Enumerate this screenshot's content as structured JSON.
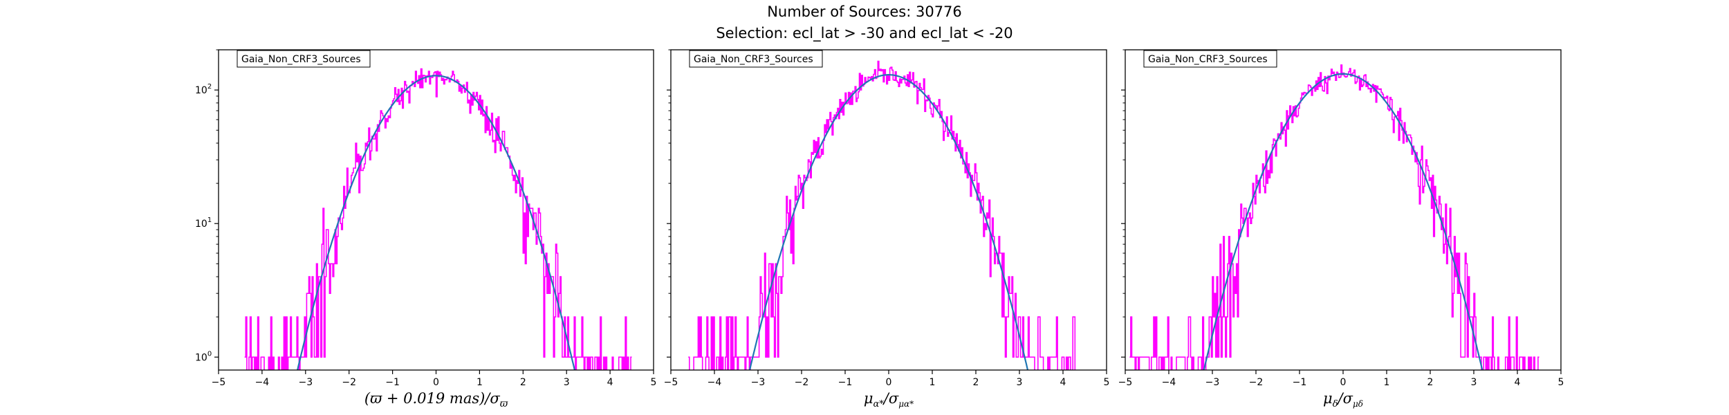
{
  "figure": {
    "title_line1": "Number of Sources: 30776",
    "title_line2": "Selection: ecl_lat > -30 and ecl_lat < -20"
  },
  "colors": {
    "histogram": "#ff00ff",
    "fit": "#1f77b4",
    "frame": "#000000",
    "background": "#ffffff"
  },
  "chart_data": [
    {
      "type": "histogram",
      "legend": "Gaia_Non_CRF3_Sources",
      "xlabel": "(ϖ + 0.019 mas)/σ_ϖ",
      "xlabel_main": "(ϖ + 0.019 mas)/σ",
      "xlabel_sub": "ϖ",
      "xlim": [
        -5,
        5
      ],
      "ylim": [
        0.8,
        200
      ],
      "yscale": "log",
      "xticks": [
        "−5",
        "−4",
        "−3",
        "−2",
        "−1",
        "0",
        "1",
        "2",
        "3",
        "4",
        "5"
      ],
      "yticks": [
        {
          "base": "10",
          "exp": "0",
          "value": 1
        },
        {
          "base": "10",
          "exp": "1",
          "value": 10
        },
        {
          "base": "10",
          "exp": "2",
          "value": 100
        }
      ],
      "histogram": {
        "range": [
          -4.4,
          4.5
        ],
        "peak": 128,
        "center": 0.0,
        "sigma": 1.0,
        "seed": 11
      },
      "fit": {
        "amplitude": 128,
        "mean": 0.0,
        "sigma": 1.0,
        "range": [
          -3.8,
          3.8
        ]
      }
    },
    {
      "type": "histogram",
      "legend": "Gaia_Non_CRF3_Sources",
      "xlabel": "μ_α*/σ_μα*",
      "xlabel_main": "μ",
      "xlabel_sub": "α*",
      "xlabel_mid": "/σ",
      "xlabel_sub2": "μα*",
      "xlim": [
        -5,
        5
      ],
      "ylim": [
        0.8,
        200
      ],
      "yscale": "log",
      "xticks": [
        "−5",
        "−4",
        "−3",
        "−2",
        "−1",
        "0",
        "1",
        "2",
        "3",
        "4",
        "5"
      ],
      "yticks": [
        {
          "base": "10",
          "exp": "0",
          "value": 1
        },
        {
          "base": "10",
          "exp": "1",
          "value": 10
        },
        {
          "base": "10",
          "exp": "2",
          "value": 100
        }
      ],
      "histogram": {
        "range": [
          -4.6,
          4.4
        ],
        "peak": 130,
        "center": 0.0,
        "sigma": 1.0,
        "seed": 23
      },
      "fit": {
        "amplitude": 130,
        "mean": 0.0,
        "sigma": 1.0,
        "range": [
          -3.8,
          3.8
        ]
      }
    },
    {
      "type": "histogram",
      "legend": "Gaia_Non_CRF3_Sources",
      "xlabel": "μ_δ/σ_μδ",
      "xlabel_main": "μ",
      "xlabel_sub": "δ",
      "xlabel_mid": "/σ",
      "xlabel_sub2": "μδ",
      "xlim": [
        -5,
        5
      ],
      "ylim": [
        0.8,
        200
      ],
      "yscale": "log",
      "xticks": [
        "−5",
        "−4",
        "−3",
        "−2",
        "−1",
        "0",
        "1",
        "2",
        "3",
        "4",
        "5"
      ],
      "yticks": [
        {
          "base": "10",
          "exp": "0",
          "value": 1
        },
        {
          "base": "10",
          "exp": "1",
          "value": 10
        },
        {
          "base": "10",
          "exp": "2",
          "value": 100
        }
      ],
      "histogram": {
        "range": [
          -4.9,
          4.5
        ],
        "peak": 132,
        "center": 0.0,
        "sigma": 1.0,
        "seed": 37
      },
      "fit": {
        "amplitude": 132,
        "mean": 0.0,
        "sigma": 1.0,
        "range": [
          -3.8,
          3.8
        ]
      }
    }
  ]
}
